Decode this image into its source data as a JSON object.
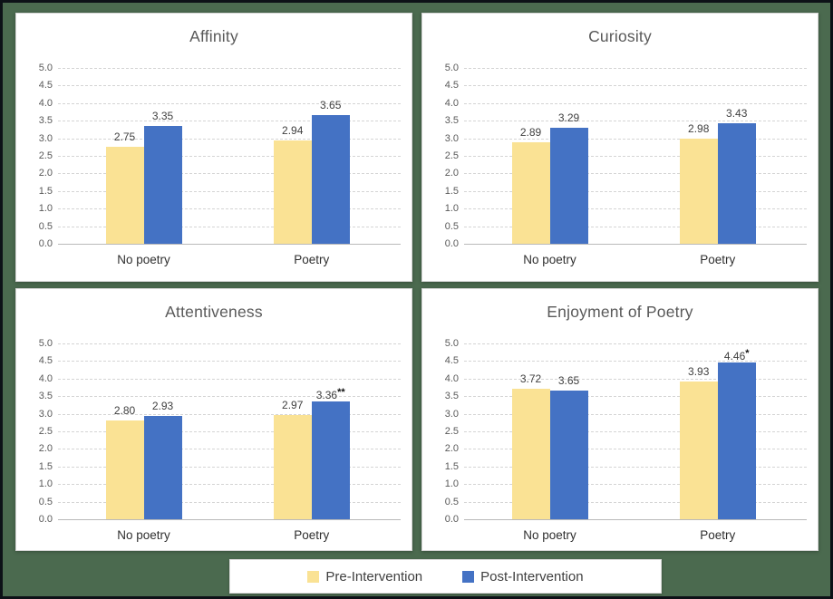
{
  "page": {
    "background_color": "#4B6A4F",
    "outer_border_color": "#0d1117",
    "panel_background": "#ffffff"
  },
  "colors": {
    "pre_intervention": "#FAE294",
    "post_intervention": "#4472C4",
    "title_text": "#595959",
    "tick_text": "#595959",
    "value_label_text": "#404040",
    "gridline": "#d4d4d4"
  },
  "legend": {
    "items": [
      {
        "label": "Pre-Intervention",
        "color": "#FAE294"
      },
      {
        "label": "Post-Intervention",
        "color": "#4472C4"
      }
    ]
  },
  "chart_data": [
    {
      "type": "bar",
      "title": "Affinity",
      "categories": [
        "No poetry",
        "Poetry"
      ],
      "series": [
        {
          "name": "Pre-Intervention",
          "color": "#FAE294",
          "values": [
            2.75,
            2.94
          ],
          "value_labels": [
            "2.75",
            "2.94"
          ],
          "markers": [
            "",
            ""
          ]
        },
        {
          "name": "Post-Intervention",
          "color": "#4472C4",
          "values": [
            3.35,
            3.65
          ],
          "value_labels": [
            "3.35",
            "3.65"
          ],
          "markers": [
            "",
            ""
          ]
        }
      ],
      "ylim": [
        0,
        5
      ],
      "ytick_step": 0.5,
      "ytick_labels": [
        "0.0",
        "0.5",
        "1.0",
        "1.5",
        "2.0",
        "2.5",
        "3.0",
        "3.5",
        "4.0",
        "4.5",
        "5.0"
      ],
      "grid": "horizontal-dashed",
      "legend_position": "none"
    },
    {
      "type": "bar",
      "title": "Curiosity",
      "categories": [
        "No poetry",
        "Poetry"
      ],
      "series": [
        {
          "name": "Pre-Intervention",
          "color": "#FAE294",
          "values": [
            2.89,
            2.98
          ],
          "value_labels": [
            "2.89",
            "2.98"
          ],
          "markers": [
            "",
            ""
          ]
        },
        {
          "name": "Post-Intervention",
          "color": "#4472C4",
          "values": [
            3.29,
            3.43
          ],
          "value_labels": [
            "3.29",
            "3.43"
          ],
          "markers": [
            "",
            ""
          ]
        }
      ],
      "ylim": [
        0,
        5
      ],
      "ytick_step": 0.5,
      "ytick_labels": [
        "0.0",
        "0.5",
        "1.0",
        "1.5",
        "2.0",
        "2.5",
        "3.0",
        "3.5",
        "4.0",
        "4.5",
        "5.0"
      ],
      "grid": "horizontal-dashed",
      "legend_position": "none"
    },
    {
      "type": "bar",
      "title": "Attentiveness",
      "categories": [
        "No poetry",
        "Poetry"
      ],
      "series": [
        {
          "name": "Pre-Intervention",
          "color": "#FAE294",
          "values": [
            2.8,
            2.97
          ],
          "value_labels": [
            "2.80",
            "2.97"
          ],
          "markers": [
            "",
            ""
          ]
        },
        {
          "name": "Post-Intervention",
          "color": "#4472C4",
          "values": [
            2.93,
            3.36
          ],
          "value_labels": [
            "2.93",
            "3.36"
          ],
          "markers": [
            "",
            "**"
          ]
        }
      ],
      "ylim": [
        0,
        5
      ],
      "ytick_step": 0.5,
      "ytick_labels": [
        "0.0",
        "0.5",
        "1.0",
        "1.5",
        "2.0",
        "2.5",
        "3.0",
        "3.5",
        "4.0",
        "4.5",
        "5.0"
      ],
      "grid": "horizontal-dashed",
      "legend_position": "none"
    },
    {
      "type": "bar",
      "title": "Enjoyment of Poetry",
      "categories": [
        "No poetry",
        "Poetry"
      ],
      "series": [
        {
          "name": "Pre-Intervention",
          "color": "#FAE294",
          "values": [
            3.72,
            3.93
          ],
          "value_labels": [
            "3.72",
            "3.93"
          ],
          "markers": [
            "",
            ""
          ]
        },
        {
          "name": "Post-Intervention",
          "color": "#4472C4",
          "values": [
            3.65,
            4.46
          ],
          "value_labels": [
            "3.65",
            "4.46"
          ],
          "markers": [
            "",
            "*"
          ]
        }
      ],
      "ylim": [
        0,
        5
      ],
      "ytick_step": 0.5,
      "ytick_labels": [
        "0.0",
        "0.5",
        "1.0",
        "1.5",
        "2.0",
        "2.5",
        "3.0",
        "3.5",
        "4.0",
        "4.5",
        "5.0"
      ],
      "grid": "horizontal-dashed",
      "legend_position": "none"
    }
  ]
}
